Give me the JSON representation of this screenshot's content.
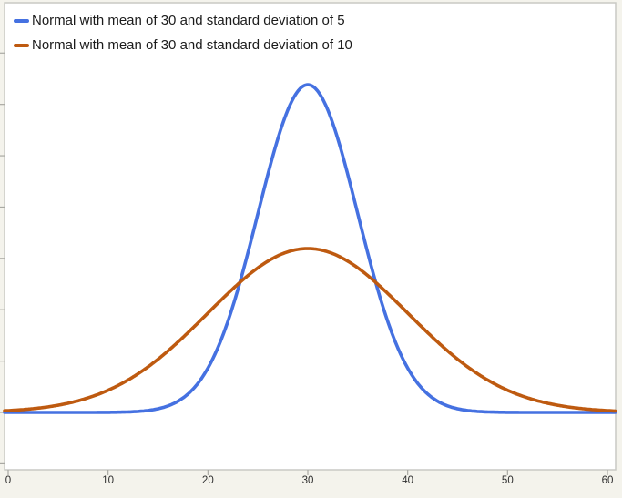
{
  "chart_data": {
    "type": "line",
    "title": "",
    "xlabel": "",
    "ylabel": "",
    "x_range": [
      0,
      60
    ],
    "x_ticks": [
      0,
      10,
      20,
      30,
      40,
      50,
      60
    ],
    "x_tick_labels": [
      "0",
      "10",
      "20",
      "30",
      "40",
      "50",
      "60"
    ],
    "y_range": [
      -0.014,
      0.1
    ],
    "y_ticks": [
      -0.0125,
      0,
      0.0125,
      0.025,
      0.0375,
      0.05,
      0.0625,
      0.075,
      0.0875
    ],
    "y_tick_labels_visible": false,
    "grid": false,
    "legend_position": "top-left",
    "series": [
      {
        "name": "Normal with mean of 30 and standard deviation of 5",
        "color": "#4571e1",
        "distribution": "normal",
        "mean": 30,
        "sd": 5,
        "peak_x": 30,
        "peak_density": 0.0798,
        "sample_x": [
          0,
          5,
          10,
          15,
          20,
          25,
          30,
          35,
          40,
          45,
          50,
          55,
          60
        ],
        "sample_y": [
          0.0,
          0.0,
          2.68e-05,
          0.000886,
          0.0108,
          0.0484,
          0.0798,
          0.0484,
          0.0108,
          0.000886,
          2.68e-05,
          0.0,
          0.0
        ]
      },
      {
        "name": "Normal with mean of 30 and standard deviation of 10",
        "color": "#be5a10",
        "distribution": "normal",
        "mean": 30,
        "sd": 10,
        "peak_x": 30,
        "peak_density": 0.0399,
        "sample_x": [
          0,
          5,
          10,
          15,
          20,
          25,
          30,
          35,
          40,
          45,
          50,
          55,
          60
        ],
        "sample_y": [
          0.000443,
          0.00175,
          0.0054,
          0.013,
          0.0242,
          0.0352,
          0.0399,
          0.0352,
          0.0242,
          0.013,
          0.0054,
          0.00175,
          0.000443
        ]
      }
    ]
  },
  "colors": {
    "background": "#f4f3ec",
    "plot_background": "#ffffff",
    "plot_border": "#c9c9c4",
    "tick": "#a9a9a3",
    "axis_label_text": "#2e2e2e",
    "legend_text": "#1b1b1b"
  }
}
